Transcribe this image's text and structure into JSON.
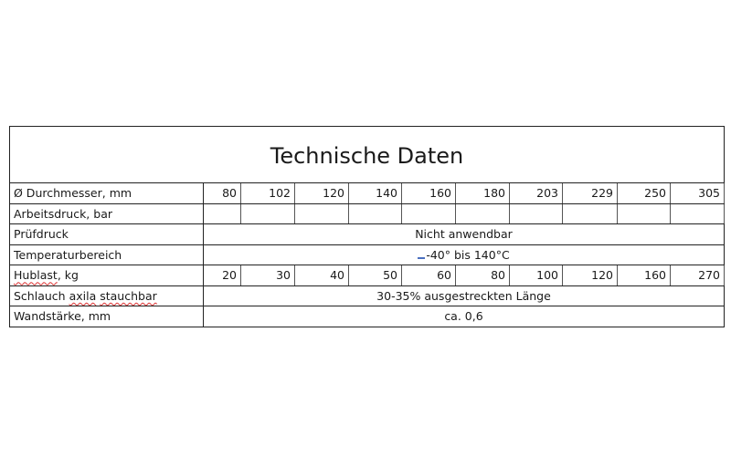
{
  "title": "Technische Daten",
  "rows": [
    {
      "label": "Ø Durchmesser, mm",
      "values": [
        "80",
        "102",
        "120",
        "140",
        "160",
        "180",
        "203",
        "229",
        "250",
        "305"
      ]
    },
    {
      "label": "Arbeitsdruck, bar",
      "values": [
        "",
        "",
        "",
        "",
        "",
        "",
        "",
        "",
        "",
        ""
      ]
    },
    {
      "label": "Prüfdruck",
      "span_value": "Nicht anwendbar"
    },
    {
      "label": "Temperaturbereich",
      "span_value": "-40° bis 140°C"
    },
    {
      "label_parts": [
        "Hublast",
        ", kg"
      ],
      "values": [
        "20",
        "30",
        "40",
        "50",
        "60",
        "80",
        "100",
        "120",
        "160",
        "270"
      ]
    },
    {
      "label_parts": [
        "Schlauch ",
        "axila",
        " ",
        "stauchbar"
      ],
      "span_value": "30-35% ausgestreckten Länge"
    },
    {
      "label": "Wandstärke, mm",
      "span_value": "ca. 0,6"
    }
  ]
}
